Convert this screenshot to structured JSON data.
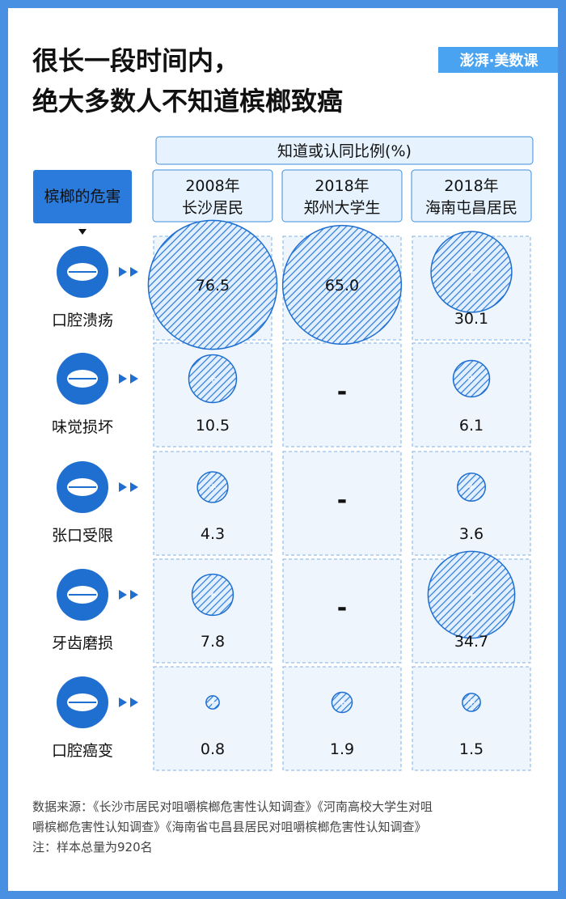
{
  "title": {
    "line1": "很长一段时间内，",
    "line2": "绝大多数人不知道槟榔致癌"
  },
  "logo": {
    "text": "澎湃·美数课"
  },
  "colors": {
    "background": "#4a90e2",
    "accent": "#1f6fd0",
    "header_fill": "#e6f2fd",
    "tile_fill": "#eef5fd",
    "label_box": "#2b7bdc"
  },
  "chart_data": {
    "type": "bubble-table",
    "title": "知道或认同比例(%)",
    "row_header": "槟榔的危害",
    "columns": [
      {
        "year": "2008年",
        "group": "长沙居民"
      },
      {
        "year": "2018年",
        "group": "郑州大学生"
      },
      {
        "year": "2018年",
        "group": "海南屯昌居民"
      }
    ],
    "rows": [
      {
        "harm": "口腔溃疡",
        "icon": "mouth-ulcer-icon",
        "values": [
          76.5,
          65.0,
          30.1
        ]
      },
      {
        "harm": "味觉损坏",
        "icon": "tongue-taste-icon",
        "values": [
          10.5,
          null,
          6.1
        ]
      },
      {
        "harm": "张口受限",
        "icon": "mouth-limited-icon",
        "values": [
          4.3,
          null,
          3.6
        ]
      },
      {
        "harm": "牙齿磨损",
        "icon": "tooth-wear-icon",
        "values": [
          7.8,
          null,
          34.7
        ]
      },
      {
        "harm": "口腔癌变",
        "icon": "mouth-cancer-icon",
        "values": [
          0.8,
          1.9,
          1.5
        ]
      }
    ],
    "labels": [
      [
        "76.5",
        "65.0",
        "30.1"
      ],
      [
        "10.5",
        "-",
        "6.1"
      ],
      [
        "4.3",
        "-",
        "3.6"
      ],
      [
        "7.8",
        "-",
        "34.7"
      ],
      [
        "0.8",
        "1.9",
        "1.5"
      ]
    ],
    "missing_label": "-"
  },
  "footer": {
    "source_line1": "数据来源：《长沙市居民对咀嚼槟榔危害性认知调查》《河南高校大学生对咀",
    "source_line2": "嚼槟榔危害性认知调查》《海南省屯昌县居民对咀嚼槟榔危害性认知调查》",
    "note": "注：样本总量为920名"
  }
}
